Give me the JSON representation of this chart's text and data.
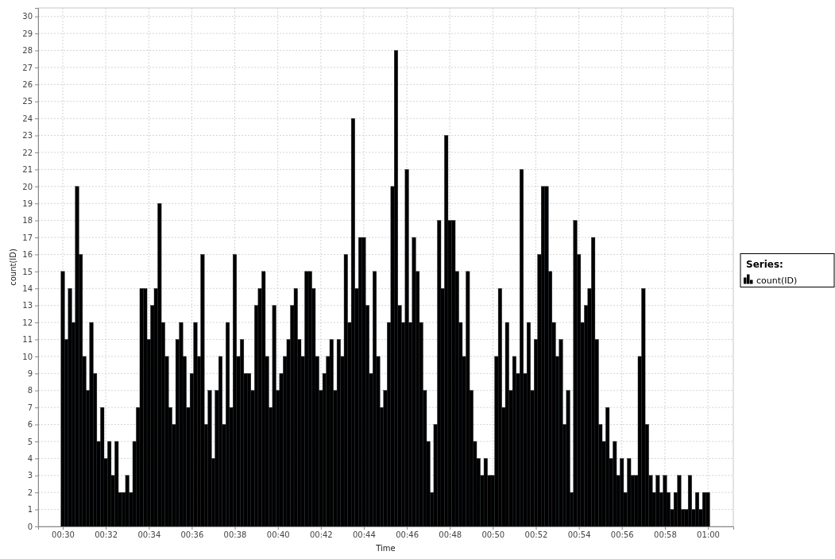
{
  "chart_data": {
    "type": "bar",
    "xlabel": "Time",
    "ylabel": "count(ID)",
    "legend_title": "Series:",
    "legend": "right",
    "grid": true,
    "xlim": [
      0.4809,
      1.0197
    ],
    "ylim": [
      0,
      30.5
    ],
    "xticks": [
      {
        "value": 0.5,
        "label": "00:30"
      },
      {
        "value": 0.5333,
        "label": "00:32"
      },
      {
        "value": 0.5667,
        "label": "00:34"
      },
      {
        "value": 0.6,
        "label": "00:36"
      },
      {
        "value": 0.6333,
        "label": "00:38"
      },
      {
        "value": 0.6667,
        "label": "00:40"
      },
      {
        "value": 0.7,
        "label": "00:42"
      },
      {
        "value": 0.7333,
        "label": "00:44"
      },
      {
        "value": 0.7667,
        "label": "00:46"
      },
      {
        "value": 0.8,
        "label": "00:48"
      },
      {
        "value": 0.8333,
        "label": "00:50"
      },
      {
        "value": 0.8667,
        "label": "00:52"
      },
      {
        "value": 0.9,
        "label": "00:54"
      },
      {
        "value": 0.9333,
        "label": "00:56"
      },
      {
        "value": 0.9667,
        "label": "00:58"
      },
      {
        "value": 1.0,
        "label": "01:00"
      }
    ],
    "yticks": [
      0,
      1,
      2,
      3,
      4,
      5,
      6,
      7,
      8,
      9,
      10,
      11,
      12,
      13,
      14,
      15,
      16,
      17,
      18,
      19,
      20,
      21,
      22,
      23,
      24,
      25,
      26,
      27,
      28,
      29,
      30
    ],
    "x": [
      0.5,
      0.5028,
      0.5056,
      0.5083,
      0.5111,
      0.5139,
      0.5167,
      0.5194,
      0.5222,
      0.525,
      0.5278,
      0.5306,
      0.5333,
      0.5361,
      0.5389,
      0.5417,
      0.5444,
      0.5472,
      0.55,
      0.5528,
      0.5556,
      0.5583,
      0.5611,
      0.5639,
      0.5667,
      0.5694,
      0.5722,
      0.575,
      0.5778,
      0.5806,
      0.5833,
      0.5861,
      0.5889,
      0.5917,
      0.5944,
      0.5972,
      0.6,
      0.6028,
      0.6056,
      0.6083,
      0.6111,
      0.6139,
      0.6167,
      0.6194,
      0.6222,
      0.625,
      0.6278,
      0.6306,
      0.6333,
      0.6361,
      0.6389,
      0.6417,
      0.6444,
      0.6472,
      0.65,
      0.6528,
      0.6556,
      0.6583,
      0.6611,
      0.6639,
      0.6667,
      0.6694,
      0.6722,
      0.675,
      0.6778,
      0.6806,
      0.6833,
      0.6861,
      0.6889,
      0.6917,
      0.6944,
      0.6972,
      0.7,
      0.7028,
      0.7056,
      0.7083,
      0.7111,
      0.7139,
      0.7167,
      0.7194,
      0.7222,
      0.725,
      0.7278,
      0.7306,
      0.7333,
      0.7361,
      0.7389,
      0.7417,
      0.7444,
      0.7472,
      0.75,
      0.7528,
      0.7556,
      0.7583,
      0.7611,
      0.7639,
      0.7667,
      0.7694,
      0.7722,
      0.775,
      0.7778,
      0.7806,
      0.7833,
      0.7861,
      0.7889,
      0.7917,
      0.7944,
      0.7972,
      0.8,
      0.8028,
      0.8056,
      0.8083,
      0.8111,
      0.8139,
      0.8167,
      0.8194,
      0.8222,
      0.825,
      0.8278,
      0.8306,
      0.8333,
      0.8361,
      0.8389,
      0.8417,
      0.8444,
      0.8472,
      0.85,
      0.8528,
      0.8556,
      0.8583,
      0.8611,
      0.8639,
      0.8667,
      0.8694,
      0.8722,
      0.875,
      0.8778,
      0.8806,
      0.8833,
      0.8861,
      0.8889,
      0.8917,
      0.8944,
      0.8972,
      0.9,
      0.9028,
      0.9056,
      0.9083,
      0.9111,
      0.9139,
      0.9167,
      0.9194,
      0.9222,
      0.925,
      0.9278,
      0.9306,
      0.9333,
      0.9361,
      0.9389,
      0.9417,
      0.9444,
      0.9472,
      0.95,
      0.9528,
      0.9556,
      0.9583,
      0.9611,
      0.9639,
      0.9667,
      0.9694,
      0.9722,
      0.975,
      0.9778,
      0.9806,
      0.9833,
      0.9861,
      0.9889,
      0.9917,
      0.9944,
      0.9972,
      1.0
    ],
    "series": [
      {
        "name": "count(ID)",
        "color": "#000000",
        "values": [
          15,
          11,
          14,
          12,
          20,
          16,
          10,
          8,
          12,
          9,
          5,
          7,
          4,
          5,
          3,
          5,
          2,
          2,
          3,
          2,
          5,
          7,
          14,
          14,
          11,
          13,
          14,
          19,
          12,
          10,
          7,
          6,
          11,
          12,
          10,
          7,
          9,
          12,
          10,
          16,
          6,
          8,
          4,
          8,
          10,
          6,
          12,
          7,
          16,
          10,
          11,
          9,
          9,
          8,
          13,
          14,
          15,
          10,
          7,
          13,
          8,
          9,
          10,
          11,
          13,
          14,
          11,
          10,
          15,
          15,
          14,
          10,
          8,
          9,
          10,
          11,
          8,
          11,
          10,
          16,
          12,
          24,
          14,
          17,
          17,
          13,
          9,
          15,
          10,
          7,
          8,
          12,
          20,
          28,
          13,
          12,
          21,
          12,
          17,
          15,
          12,
          8,
          5,
          2,
          6,
          18,
          14,
          23,
          18,
          18,
          15,
          12,
          10,
          15,
          8,
          5,
          4,
          3,
          4,
          3,
          3,
          10,
          14,
          7,
          12,
          8,
          10,
          9,
          21,
          9,
          12,
          8,
          11,
          16,
          20,
          20,
          15,
          12,
          10,
          11,
          6,
          8,
          2,
          18,
          16,
          12,
          13,
          14,
          17,
          11,
          6,
          5,
          7,
          4,
          5,
          3,
          4,
          2,
          4,
          3,
          3,
          10,
          14,
          6,
          3,
          2,
          3,
          2,
          3,
          2,
          1,
          2,
          3,
          1,
          1,
          3,
          1,
          2,
          1,
          2,
          2
        ]
      }
    ]
  }
}
